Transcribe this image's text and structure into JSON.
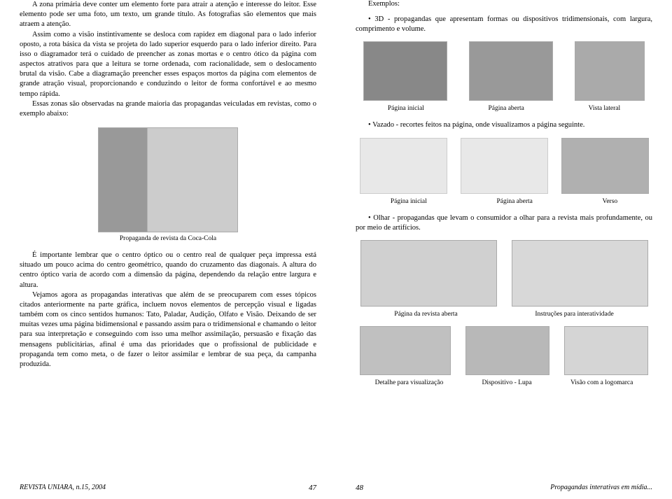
{
  "leftPage": {
    "para1": "A zona primária deve conter um elemento forte para atrair a atenção e interesse do leitor. Esse elemento pode ser uma foto, um texto, um grande título. As fotografias são elementos que mais atraem a atenção.",
    "para2": "Assim como a visão instintivamente se desloca com rapidez em diagonal para o lado inferior oposto, a rota básica da vista se projeta do lado superior esquerdo para o lado inferior direito. Para isso o diagramador terá o cuidado de preencher as zonas mortas e o centro ótico da página com aspectos atrativos para que a leitura se torne ordenada, com racionalidade, sem o deslocamento brutal da visão. Cabe a diagramação preencher esses espaços mortos da página com elementos de grande atração visual, proporcionando e conduzindo o leitor de forma confortável e ao mesmo tempo rápida.",
    "para3": "Essas zonas são observadas na grande maioria das propagandas veiculadas em revistas, como o exemplo abaixo:",
    "cokeCaption": "Propaganda de revista da Coca-Cola",
    "para4": "É importante lembrar que o centro óptico ou o centro real de qualquer peça impressa está situado um pouco acima do centro geométrico, quando do cruzamento das diagonais. A altura do centro óptico varia de acordo com a dimensão da página, dependendo da relação entre largura e altura.",
    "para5": "Vejamos agora as propagandas interativas que além de se preocuparem com esses tópicos citados anteriormente na parte gráfica, incluem novos elementos de percepção visual e ligadas também com os cinco sentidos humanos: Tato, Paladar, Audição, Olfato e Visão. Deixando de ser muitas vezes uma página bidimensional e passando assim para o tridimensional e chamando o leitor para sua interpretação e conseguindo com isso uma melhor assimilação, persuasão e fixação das mensagens publicitárias, afinal é uma das prioridades que o profissional de publicidade e propaganda tem como meta, o de fazer o leitor assimilar e lembrar de sua peça, da campanha produzida.",
    "footerLeft": "REVISTA UNIARA, n.15, 2004",
    "pageNum": "47"
  },
  "rightPage": {
    "exemplos": "Exemplos:",
    "bullet3d": "3D - propagandas que apresentam formas ou dispositivos tridimensionais, com largura, comprimento e volume.",
    "cap3d_1": "Página inicial",
    "cap3d_2": "Página aberta",
    "cap3d_3": "Vista lateral",
    "bulletVazado": "Vazado - recortes feitos na página, onde visualizamos a página seguinte.",
    "capVaz_1": "Página inicial",
    "capVaz_2": "Página aberta",
    "capVaz_3": "Verso",
    "bulletOlhar": "Olhar - propagandas que levam o consumidor a olhar para a revista mais profundamente, ou por meio de artifícios.",
    "capOlhar_1": "Página da revista aberta",
    "capOlhar_2": "Instruções para interatividade",
    "capDet_1": "Detalhe para visualização",
    "capDet_2": "Dispositivo - Lupa",
    "capDet_3": "Visão com a logomarca",
    "pageNum": "48",
    "footerRight": "Propagandas interativas em mídia..."
  }
}
